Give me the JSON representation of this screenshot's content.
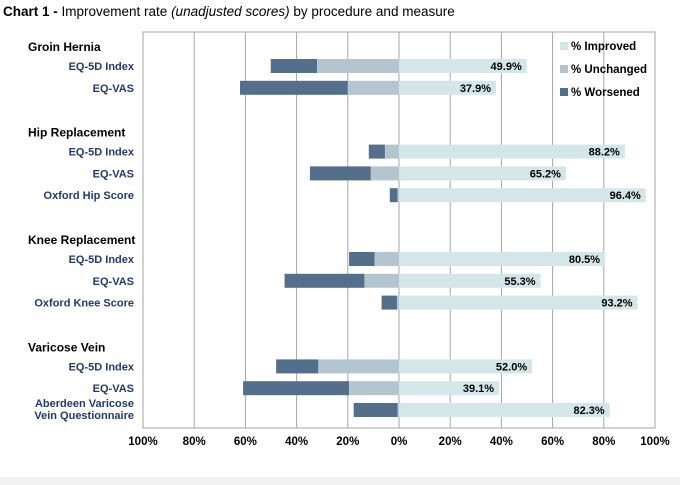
{
  "title": {
    "prefix": "Chart 1 -",
    "text_before": " Improvement rate ",
    "italic": "(unadjusted scores)",
    "text_after": " by procedure and measure"
  },
  "colors": {
    "improved": "#d3e7e9",
    "unchanged": "#b3c6cf",
    "worsened": "#546f8c",
    "gridline": "#a6a6a6",
    "row_label": "#1f3b6b"
  },
  "chart_data": {
    "type": "bar",
    "orientation": "horizontal-diverging",
    "xlim": [
      -100,
      100
    ],
    "xticks": [
      -100,
      -80,
      -60,
      -40,
      -20,
      0,
      20,
      40,
      60,
      80,
      100
    ],
    "xtick_labels": [
      "100%",
      "80%",
      "60%",
      "40%",
      "20%",
      "0%",
      "20%",
      "40%",
      "60%",
      "80%",
      "100%"
    ],
    "legend": {
      "position": "top-right",
      "entries": [
        "% Improved",
        "% Unchanged",
        "% Worsened"
      ]
    },
    "grid": "vertical",
    "groups": [
      {
        "name": "Groin Hernia",
        "rows": [
          {
            "label": [
              "EQ-5D Index"
            ],
            "improved": 49.9,
            "unchanged": 32,
            "worsened": 18.1,
            "improved_label": "49.9%"
          },
          {
            "label": [
              "EQ-VAS"
            ],
            "improved": 37.9,
            "unchanged": 20,
            "worsened": 42.1,
            "improved_label": "37.9%"
          }
        ]
      },
      {
        "name": "Hip Replacement",
        "rows": [
          {
            "label": [
              "EQ-5D Index"
            ],
            "improved": 88.2,
            "unchanged": 5.5,
            "worsened": 6.3,
            "improved_label": "88.2%"
          },
          {
            "label": [
              "EQ-VAS"
            ],
            "improved": 65.2,
            "unchanged": 11,
            "worsened": 23.8,
            "improved_label": "65.2%"
          },
          {
            "label": [
              "Oxford Hip Score"
            ],
            "improved": 96.4,
            "unchanged": 0.6,
            "worsened": 3,
            "improved_label": "96.4%"
          }
        ]
      },
      {
        "name": "Knee Replacement",
        "rows": [
          {
            "label": [
              "EQ-5D Index"
            ],
            "improved": 80.5,
            "unchanged": 9.5,
            "worsened": 10,
            "improved_label": "80.5%"
          },
          {
            "label": [
              "EQ-VAS"
            ],
            "improved": 55.3,
            "unchanged": 13.5,
            "worsened": 31.2,
            "improved_label": "55.3%"
          },
          {
            "label": [
              "Oxford Knee Score"
            ],
            "improved": 93.2,
            "unchanged": 0.8,
            "worsened": 6,
            "improved_label": "93.2%"
          }
        ]
      },
      {
        "name": "Varicose Vein",
        "rows": [
          {
            "label": [
              "EQ-5D Index"
            ],
            "improved": 52.0,
            "unchanged": 31.5,
            "worsened": 16.5,
            "improved_label": "52.0%"
          },
          {
            "label": [
              "EQ-VAS"
            ],
            "improved": 39.1,
            "unchanged": 19.5,
            "worsened": 41.4,
            "improved_label": "39.1%"
          },
          {
            "label": [
              "Aberdeen Varicose",
              "Vein Questionnaire"
            ],
            "improved": 82.3,
            "unchanged": 0.5,
            "worsened": 17.2,
            "improved_label": "82.3%"
          }
        ]
      }
    ]
  }
}
